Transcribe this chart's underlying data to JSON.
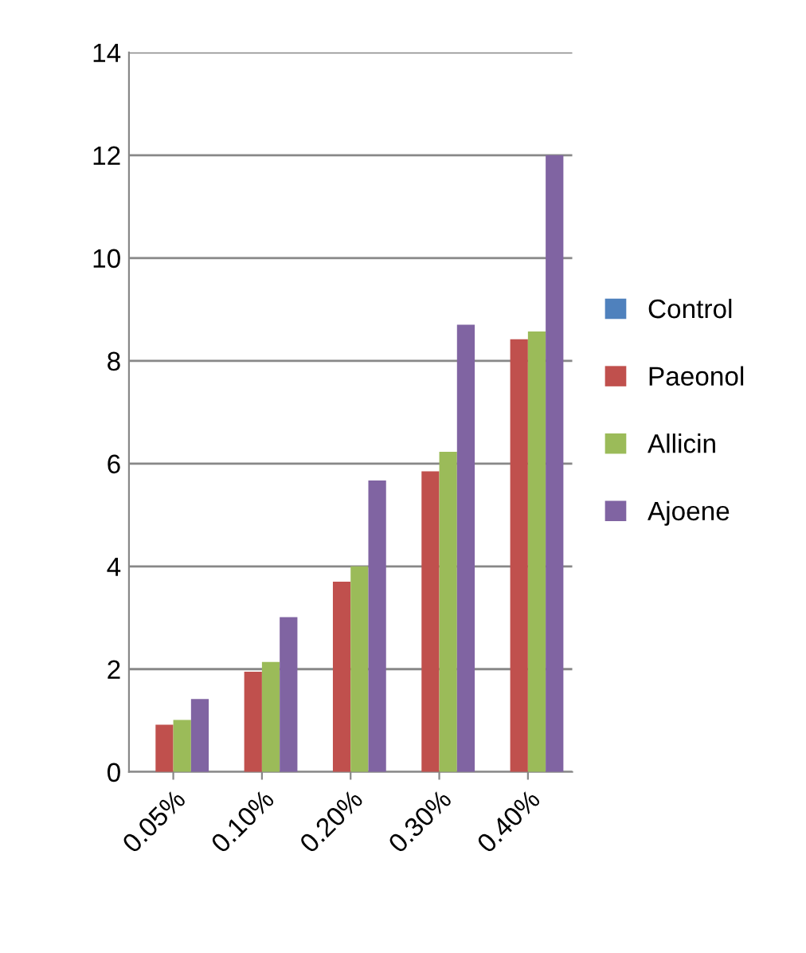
{
  "chart_data": {
    "type": "bar",
    "categories": [
      "0.05%",
      "0.10%",
      "0.20%",
      "0.30%",
      "0.40%"
    ],
    "series": [
      {
        "name": "Control",
        "color": "#4f81bd",
        "values": [
          0,
          0,
          0,
          0,
          0
        ]
      },
      {
        "name": "Paeonol",
        "color": "#c0504d",
        "values": [
          0.92,
          1.95,
          3.7,
          5.85,
          8.42
        ]
      },
      {
        "name": "Allicin",
        "color": "#9bbb59",
        "values": [
          1.01,
          2.14,
          4.0,
          6.23,
          8.57
        ]
      },
      {
        "name": "Ajoene",
        "color": "#8064a2",
        "values": [
          1.42,
          3.01,
          5.67,
          8.7,
          12.0
        ]
      }
    ],
    "ylim": [
      0,
      14
    ],
    "yticks": [
      0,
      2,
      4,
      6,
      8,
      10,
      12,
      14
    ],
    "grid": "y",
    "legend": "right"
  }
}
